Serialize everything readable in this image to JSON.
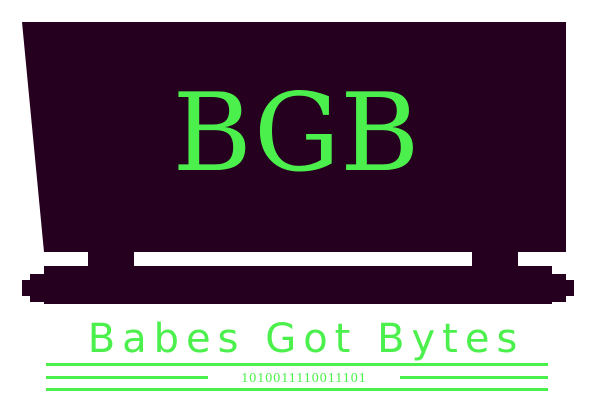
{
  "logo": {
    "initials": "BGB",
    "tagline": "Babes Got Bytes",
    "binary": "1010011110011101"
  },
  "colors": {
    "cart": "#25001f",
    "accent": "#4cf04c",
    "background": "#ffffff"
  }
}
